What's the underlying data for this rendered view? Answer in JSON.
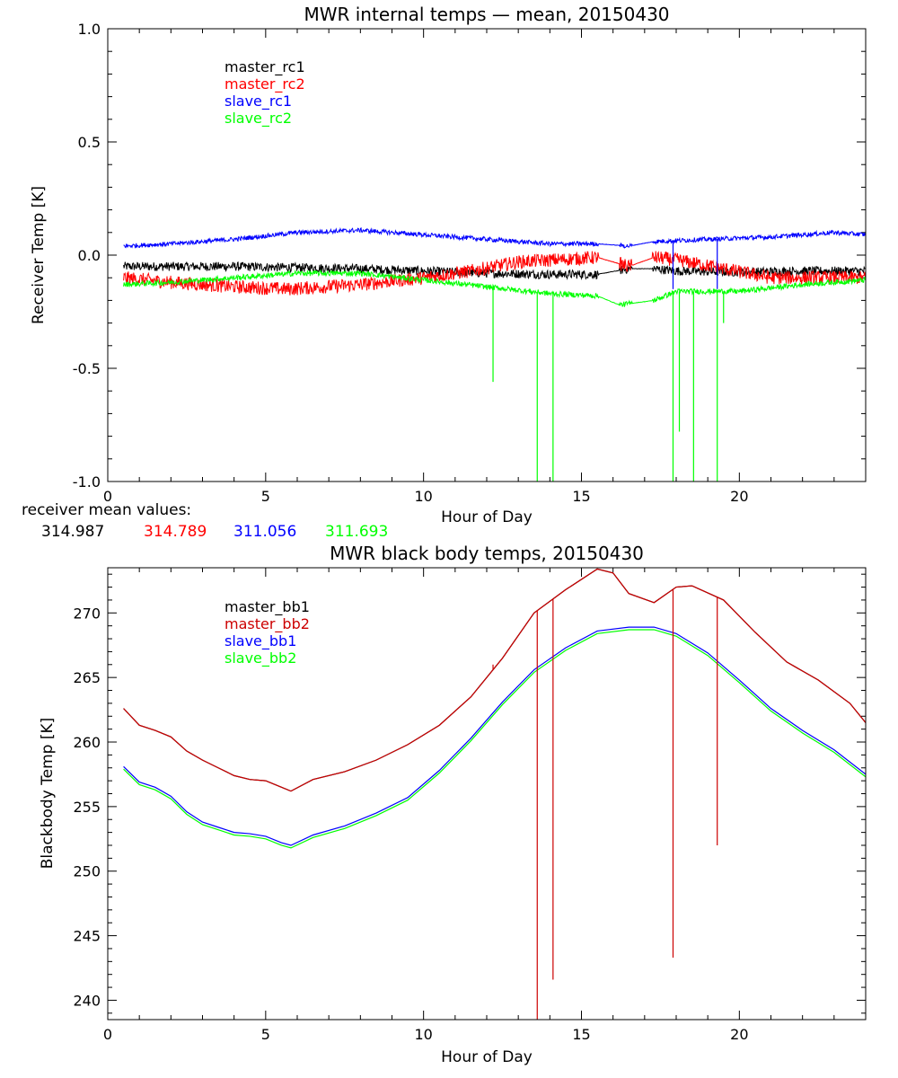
{
  "chart_data": [
    {
      "type": "line",
      "title": "MWR internal temps — mean, 20150430",
      "xlabel": "Hour of Day",
      "ylabel": "Receiver Temp [K]",
      "xlim": [
        0,
        24
      ],
      "ylim": [
        -1.0,
        1.0
      ],
      "xticks": [
        "0",
        "5",
        "10",
        "15",
        "20"
      ],
      "yticks": [
        "-1.0",
        "-0.5",
        "0.0",
        "0.5",
        "1.0"
      ],
      "grid": false,
      "legend_position": "top-left",
      "series": [
        {
          "name": "master_rc1",
          "color": "#000000",
          "x": [
            0.5,
            2,
            4,
            6,
            8,
            10,
            12,
            14,
            15.5,
            16.5,
            17.3,
            18,
            20,
            22,
            24
          ],
          "y": [
            -0.05,
            -0.05,
            -0.05,
            -0.055,
            -0.06,
            -0.07,
            -0.08,
            -0.085,
            -0.085,
            -0.06,
            -0.06,
            -0.07,
            -0.075,
            -0.07,
            -0.07
          ],
          "noise": 0.02
        },
        {
          "name": "master_rc2",
          "color": "#ff0000",
          "x": [
            0.5,
            2,
            4,
            5.7,
            8,
            10,
            11.5,
            13,
            15.5,
            16.5,
            17.3,
            18,
            19.5,
            21,
            24
          ],
          "y": [
            -0.1,
            -0.12,
            -0.14,
            -0.15,
            -0.13,
            -0.1,
            -0.07,
            -0.03,
            -0.01,
            -0.05,
            -0.01,
            -0.02,
            -0.06,
            -0.1,
            -0.1
          ],
          "noise": 0.03
        },
        {
          "name": "slave_rc1",
          "color": "#0000ff",
          "x": [
            0.5,
            2,
            4,
            6,
            8,
            10,
            12,
            14,
            15.5,
            16.5,
            17.3,
            19,
            21,
            23,
            24
          ],
          "y": [
            0.04,
            0.05,
            0.07,
            0.1,
            0.11,
            0.09,
            0.07,
            0.05,
            0.05,
            0.04,
            0.06,
            0.07,
            0.08,
            0.1,
            0.09
          ],
          "noise": 0.01
        },
        {
          "name": "slave_rc2",
          "color": "#00ff00",
          "x": [
            0.5,
            2,
            4,
            6,
            8,
            10,
            12,
            14,
            15.5,
            16.2,
            17.3,
            18,
            20,
            22,
            24
          ],
          "y": [
            -0.13,
            -0.12,
            -0.1,
            -0.08,
            -0.08,
            -0.11,
            -0.14,
            -0.17,
            -0.18,
            -0.22,
            -0.2,
            -0.16,
            -0.16,
            -0.13,
            -0.11
          ],
          "noise": 0.012
        }
      ],
      "spikes": [
        {
          "series": "slave_rc2",
          "x": 12.2,
          "y": -0.56
        },
        {
          "series": "slave_rc2",
          "x": 13.6,
          "y": -1.0
        },
        {
          "series": "slave_rc2",
          "x": 14.1,
          "y": -1.0
        },
        {
          "series": "slave_rc2",
          "x": 17.9,
          "y": -1.0
        },
        {
          "series": "slave_rc2",
          "x": 18.55,
          "y": -1.0
        },
        {
          "series": "slave_rc2",
          "x": 19.3,
          "y": -1.0
        },
        {
          "series": "slave_rc2",
          "x": 18.1,
          "y": -0.78
        },
        {
          "series": "slave_rc2",
          "x": 19.5,
          "y": -0.3
        },
        {
          "series": "slave_rc1",
          "x": 17.9,
          "y": -0.15
        },
        {
          "series": "slave_rc1",
          "x": 19.3,
          "y": -0.15
        }
      ]
    },
    {
      "type": "line",
      "title": "MWR black body temps, 20150430",
      "xlabel": "Hour of Day",
      "ylabel": "Blackbody Temp [K]",
      "xlim": [
        0,
        24
      ],
      "ylim": [
        238.5,
        273.5
      ],
      "xticks": [
        "0",
        "5",
        "10",
        "15",
        "20"
      ],
      "yticks": [
        "240",
        "245",
        "250",
        "255",
        "260",
        "265",
        "270"
      ],
      "grid": false,
      "legend_position": "top-left",
      "series": [
        {
          "name": "master_bb1",
          "color": "#000000",
          "x": [
            0.5,
            1,
            1.5,
            2,
            2.5,
            3,
            3.5,
            4,
            4.5,
            5,
            5.5,
            5.8,
            6.5,
            7.5,
            8.5,
            9.5,
            10.5,
            11.5,
            12.5,
            13.5,
            14.5,
            15.5,
            16,
            16.5,
            17.3,
            18,
            18.5,
            19.5,
            20.5,
            21.5,
            22.5,
            23.5,
            24
          ],
          "y": [
            262.6,
            261.3,
            260.9,
            260.4,
            259.3,
            258.6,
            258.0,
            257.4,
            257.1,
            257.0,
            256.5,
            256.2,
            257.1,
            257.7,
            258.6,
            259.8,
            261.3,
            263.5,
            266.5,
            270.0,
            271.8,
            273.4,
            273.1,
            271.5,
            270.8,
            272.0,
            272.1,
            271.0,
            268.5,
            266.2,
            264.8,
            263.0,
            261.5
          ]
        },
        {
          "name": "master_bb2",
          "color": "#cc0000",
          "x": [
            0.5,
            1,
            1.5,
            2,
            2.5,
            3,
            3.5,
            4,
            4.5,
            5,
            5.5,
            5.8,
            6.5,
            7.5,
            8.5,
            9.5,
            10.5,
            11.5,
            12.5,
            13.5,
            14.5,
            15.5,
            16,
            16.5,
            17.3,
            18,
            18.5,
            19.5,
            20.5,
            21.5,
            22.5,
            23.5,
            24
          ],
          "y": [
            262.6,
            261.3,
            260.9,
            260.4,
            259.3,
            258.6,
            258.0,
            257.4,
            257.1,
            257.0,
            256.5,
            256.2,
            257.1,
            257.7,
            258.6,
            259.8,
            261.3,
            263.5,
            266.5,
            270.0,
            271.8,
            273.4,
            273.1,
            271.5,
            270.8,
            272.0,
            272.1,
            271.0,
            268.5,
            266.2,
            264.8,
            263.0,
            261.5
          ]
        },
        {
          "name": "slave_bb1",
          "color": "#0000ff",
          "x": [
            0.5,
            1,
            1.5,
            2,
            2.5,
            3,
            3.5,
            4,
            4.5,
            5,
            5.5,
            5.8,
            6.5,
            7.5,
            8.5,
            9.5,
            10.5,
            11.5,
            12.5,
            13.5,
            14.5,
            15.5,
            16.5,
            17.3,
            18,
            19,
            20,
            21,
            22,
            23,
            24
          ],
          "y": [
            258.1,
            256.9,
            256.5,
            255.8,
            254.6,
            253.8,
            253.4,
            253.0,
            252.9,
            252.7,
            252.2,
            252.0,
            252.8,
            253.5,
            254.5,
            255.7,
            257.8,
            260.3,
            263.1,
            265.6,
            267.3,
            268.6,
            268.9,
            268.9,
            268.4,
            266.9,
            264.8,
            262.6,
            260.9,
            259.4,
            257.5
          ]
        },
        {
          "name": "slave_bb2",
          "color": "#00ff00",
          "x": [
            0.5,
            1,
            1.5,
            2,
            2.5,
            3,
            3.5,
            4,
            4.5,
            5,
            5.5,
            5.8,
            6.5,
            7.5,
            8.5,
            9.5,
            10.5,
            11.5,
            12.5,
            13.5,
            14.5,
            15.5,
            16.5,
            17.3,
            18,
            19,
            20,
            21,
            22,
            23,
            24
          ],
          "y": [
            257.9,
            256.7,
            256.3,
            255.6,
            254.4,
            253.6,
            253.2,
            252.8,
            252.7,
            252.5,
            252.0,
            251.8,
            252.6,
            253.3,
            254.3,
            255.5,
            257.6,
            260.1,
            262.9,
            265.4,
            267.1,
            268.4,
            268.7,
            268.7,
            268.2,
            266.7,
            264.6,
            262.4,
            260.7,
            259.2,
            257.3
          ]
        }
      ],
      "spikes": [
        {
          "series": "master_bb2",
          "x": 12.2,
          "y": 266.0
        },
        {
          "series": "master_bb2",
          "x": 13.6,
          "y": 238.5
        },
        {
          "series": "master_bb2",
          "x": 14.1,
          "y": 241.6
        },
        {
          "series": "master_bb2",
          "x": 17.9,
          "y": 243.3
        },
        {
          "series": "master_bb2",
          "x": 19.3,
          "y": 252.0
        }
      ]
    }
  ],
  "receiver_means": {
    "label": "receiver mean values:",
    "values": [
      {
        "text": "314.987",
        "color": "#000000"
      },
      {
        "text": "314.789",
        "color": "#ff0000"
      },
      {
        "text": "311.056",
        "color": "#0000ff"
      },
      {
        "text": "311.693",
        "color": "#00ff00"
      }
    ]
  }
}
